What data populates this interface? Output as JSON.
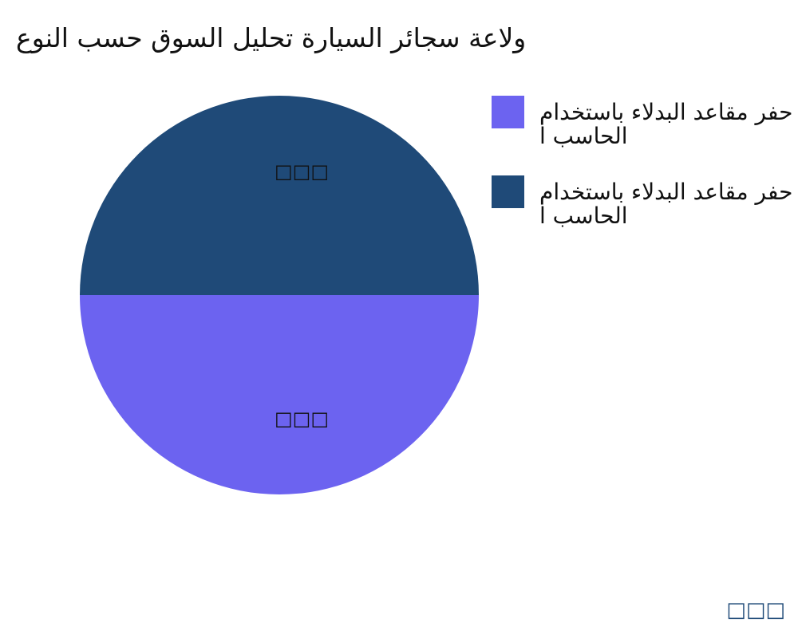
{
  "chart_data": {
    "type": "pie",
    "title": "ولاعة سجائر السيارة تحليل السوق حسب النوع",
    "slices": [
      {
        "name": "حفر مقاعد البدلاء باستخدام الحاسب ا",
        "value": 50,
        "label": "□□□",
        "color": "#6c63f0"
      },
      {
        "name": "حفر مقاعد البدلاء باستخدام الحاسب ا",
        "value": 50,
        "label": "□□□",
        "color": "#1f4a78"
      }
    ],
    "legend_placement": "right",
    "footer": "□□□"
  }
}
